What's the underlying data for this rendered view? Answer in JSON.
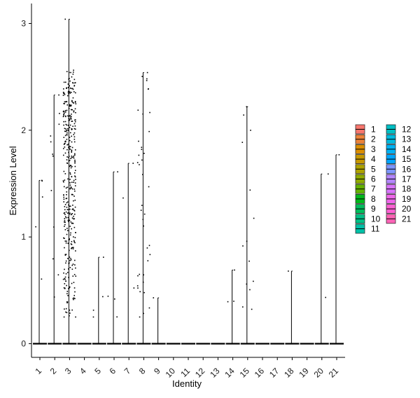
{
  "chart_data": {
    "type": "violin",
    "title": "",
    "xlabel": "Identity",
    "ylabel": "Expression Level",
    "ylim": [
      0,
      3
    ],
    "yticks": [
      0,
      1,
      2,
      3
    ],
    "categories": [
      "1",
      "2",
      "3",
      "4",
      "5",
      "6",
      "7",
      "8",
      "9",
      "10",
      "11",
      "12",
      "13",
      "14",
      "15",
      "16",
      "17",
      "18",
      "19",
      "20",
      "21"
    ],
    "max_values": [
      1.53,
      2.33,
      3.04,
      0,
      0.81,
      1.61,
      1.69,
      2.54,
      0.43,
      0,
      0,
      0,
      0,
      0.69,
      2.22,
      0,
      0,
      0.68,
      0,
      1.59,
      1.77
    ],
    "nonzero_counts": [
      5,
      12,
      400,
      0,
      4,
      4,
      3,
      40,
      1,
      0,
      0,
      0,
      0,
      3,
      14,
      0,
      0,
      1,
      0,
      2,
      1
    ],
    "grid": false,
    "legend": {
      "position": "right",
      "columns": 2,
      "items": [
        {
          "label": "1",
          "color": "#F8766D"
        },
        {
          "label": "2",
          "color": "#EC8239"
        },
        {
          "label": "3",
          "color": "#DB8E00"
        },
        {
          "label": "4",
          "color": "#C79800"
        },
        {
          "label": "5",
          "color": "#AEA200"
        },
        {
          "label": "6",
          "color": "#8FAA00"
        },
        {
          "label": "7",
          "color": "#64B200"
        },
        {
          "label": "8",
          "color": "#00B81B"
        },
        {
          "label": "9",
          "color": "#00BD5C"
        },
        {
          "label": "10",
          "color": "#00C085"
        },
        {
          "label": "11",
          "color": "#00C1A7"
        },
        {
          "label": "12",
          "color": "#00BFC4"
        },
        {
          "label": "13",
          "color": "#00BADE"
        },
        {
          "label": "14",
          "color": "#00B2F3"
        },
        {
          "label": "15",
          "color": "#00A6FF"
        },
        {
          "label": "16",
          "color": "#7C96FF"
        },
        {
          "label": "17",
          "color": "#B385FF"
        },
        {
          "label": "18",
          "color": "#D874FD"
        },
        {
          "label": "19",
          "color": "#EF67EB"
        },
        {
          "label": "20",
          "color": "#FD61D3"
        },
        {
          "label": "21",
          "color": "#FF63B6"
        }
      ]
    }
  }
}
